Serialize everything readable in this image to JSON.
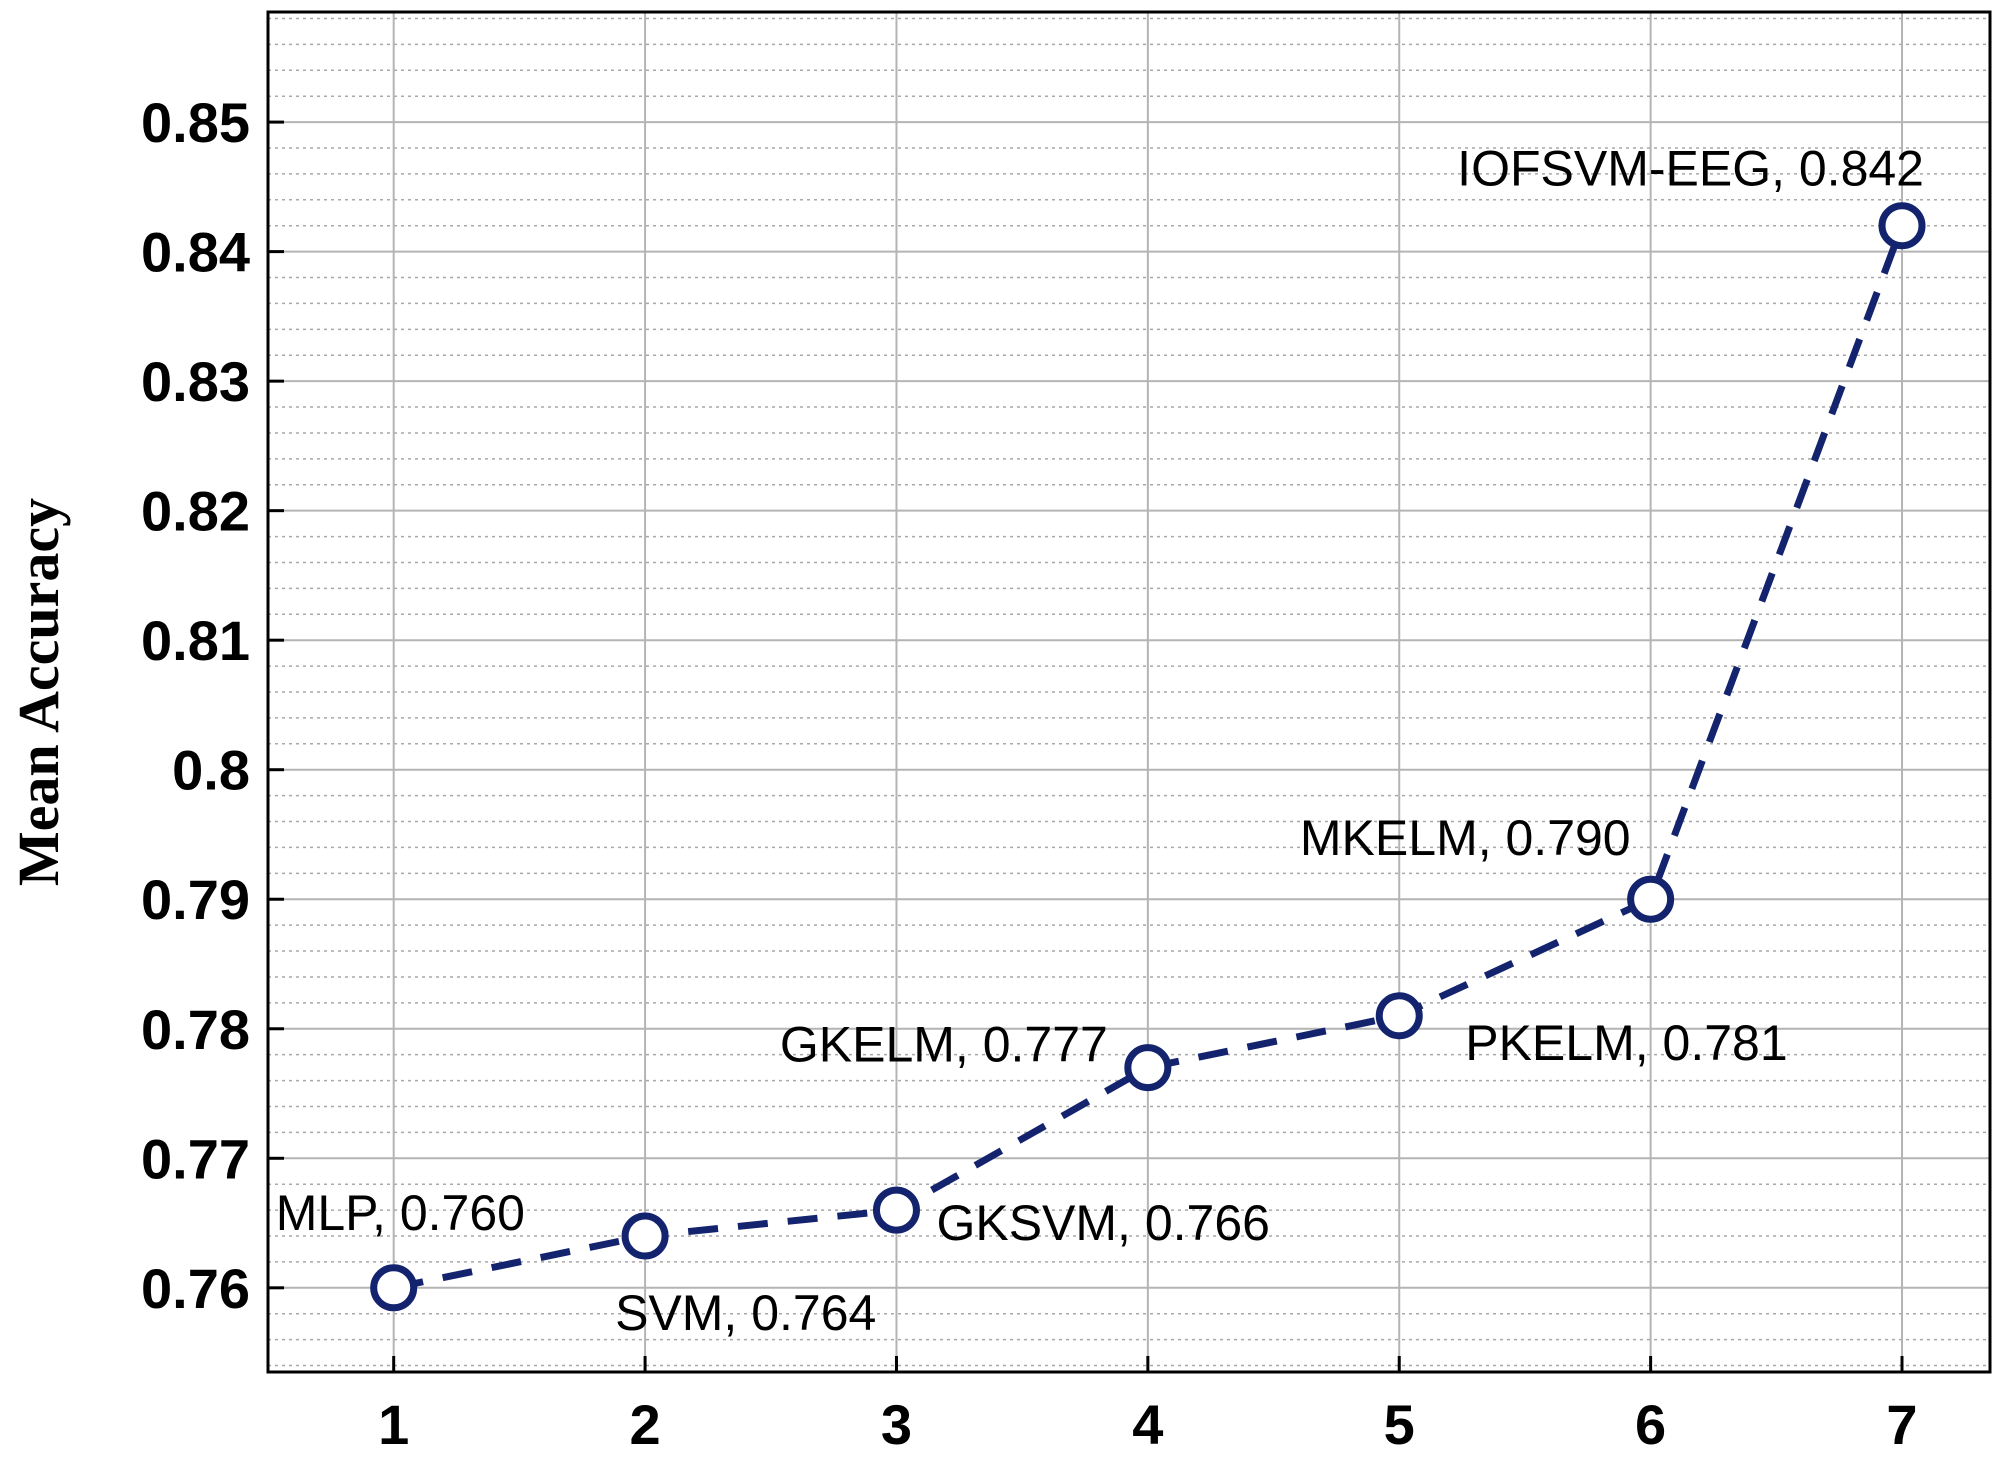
{
  "chart_data": {
    "type": "line",
    "title": "",
    "xlabel": "",
    "ylabel": "Mean Accuracy",
    "xlim": [
      0.5,
      7.35
    ],
    "ylim": [
      0.7535,
      0.8585
    ],
    "x_ticks": [
      "1",
      "2",
      "3",
      "4",
      "5",
      "6",
      "7"
    ],
    "y_ticks": [
      "0.76",
      "0.77",
      "0.78",
      "0.79",
      "0.8",
      "0.81",
      "0.82",
      "0.83",
      "0.84",
      "0.85"
    ],
    "grid": true,
    "minor_grid": true,
    "line_style": "dashed",
    "marker": "open-circle",
    "color": "#14236e",
    "series": [
      {
        "x": [
          1,
          2,
          3,
          4,
          5,
          6,
          7
        ],
        "values": [
          0.76,
          0.764,
          0.766,
          0.777,
          0.781,
          0.79,
          0.842
        ],
        "labels": [
          "MLP, 0.760",
          "SVM, 0.764",
          "GKSVM, 0.766",
          "GKELM, 0.777",
          "PKELM, 0.781",
          "MKELM, 0.790",
          "IOFSVM-EEG, 0.842"
        ],
        "label_positions": [
          "above",
          "below-left",
          "below-right",
          "above-left",
          "below-right",
          "above-left",
          "above"
        ]
      }
    ]
  }
}
